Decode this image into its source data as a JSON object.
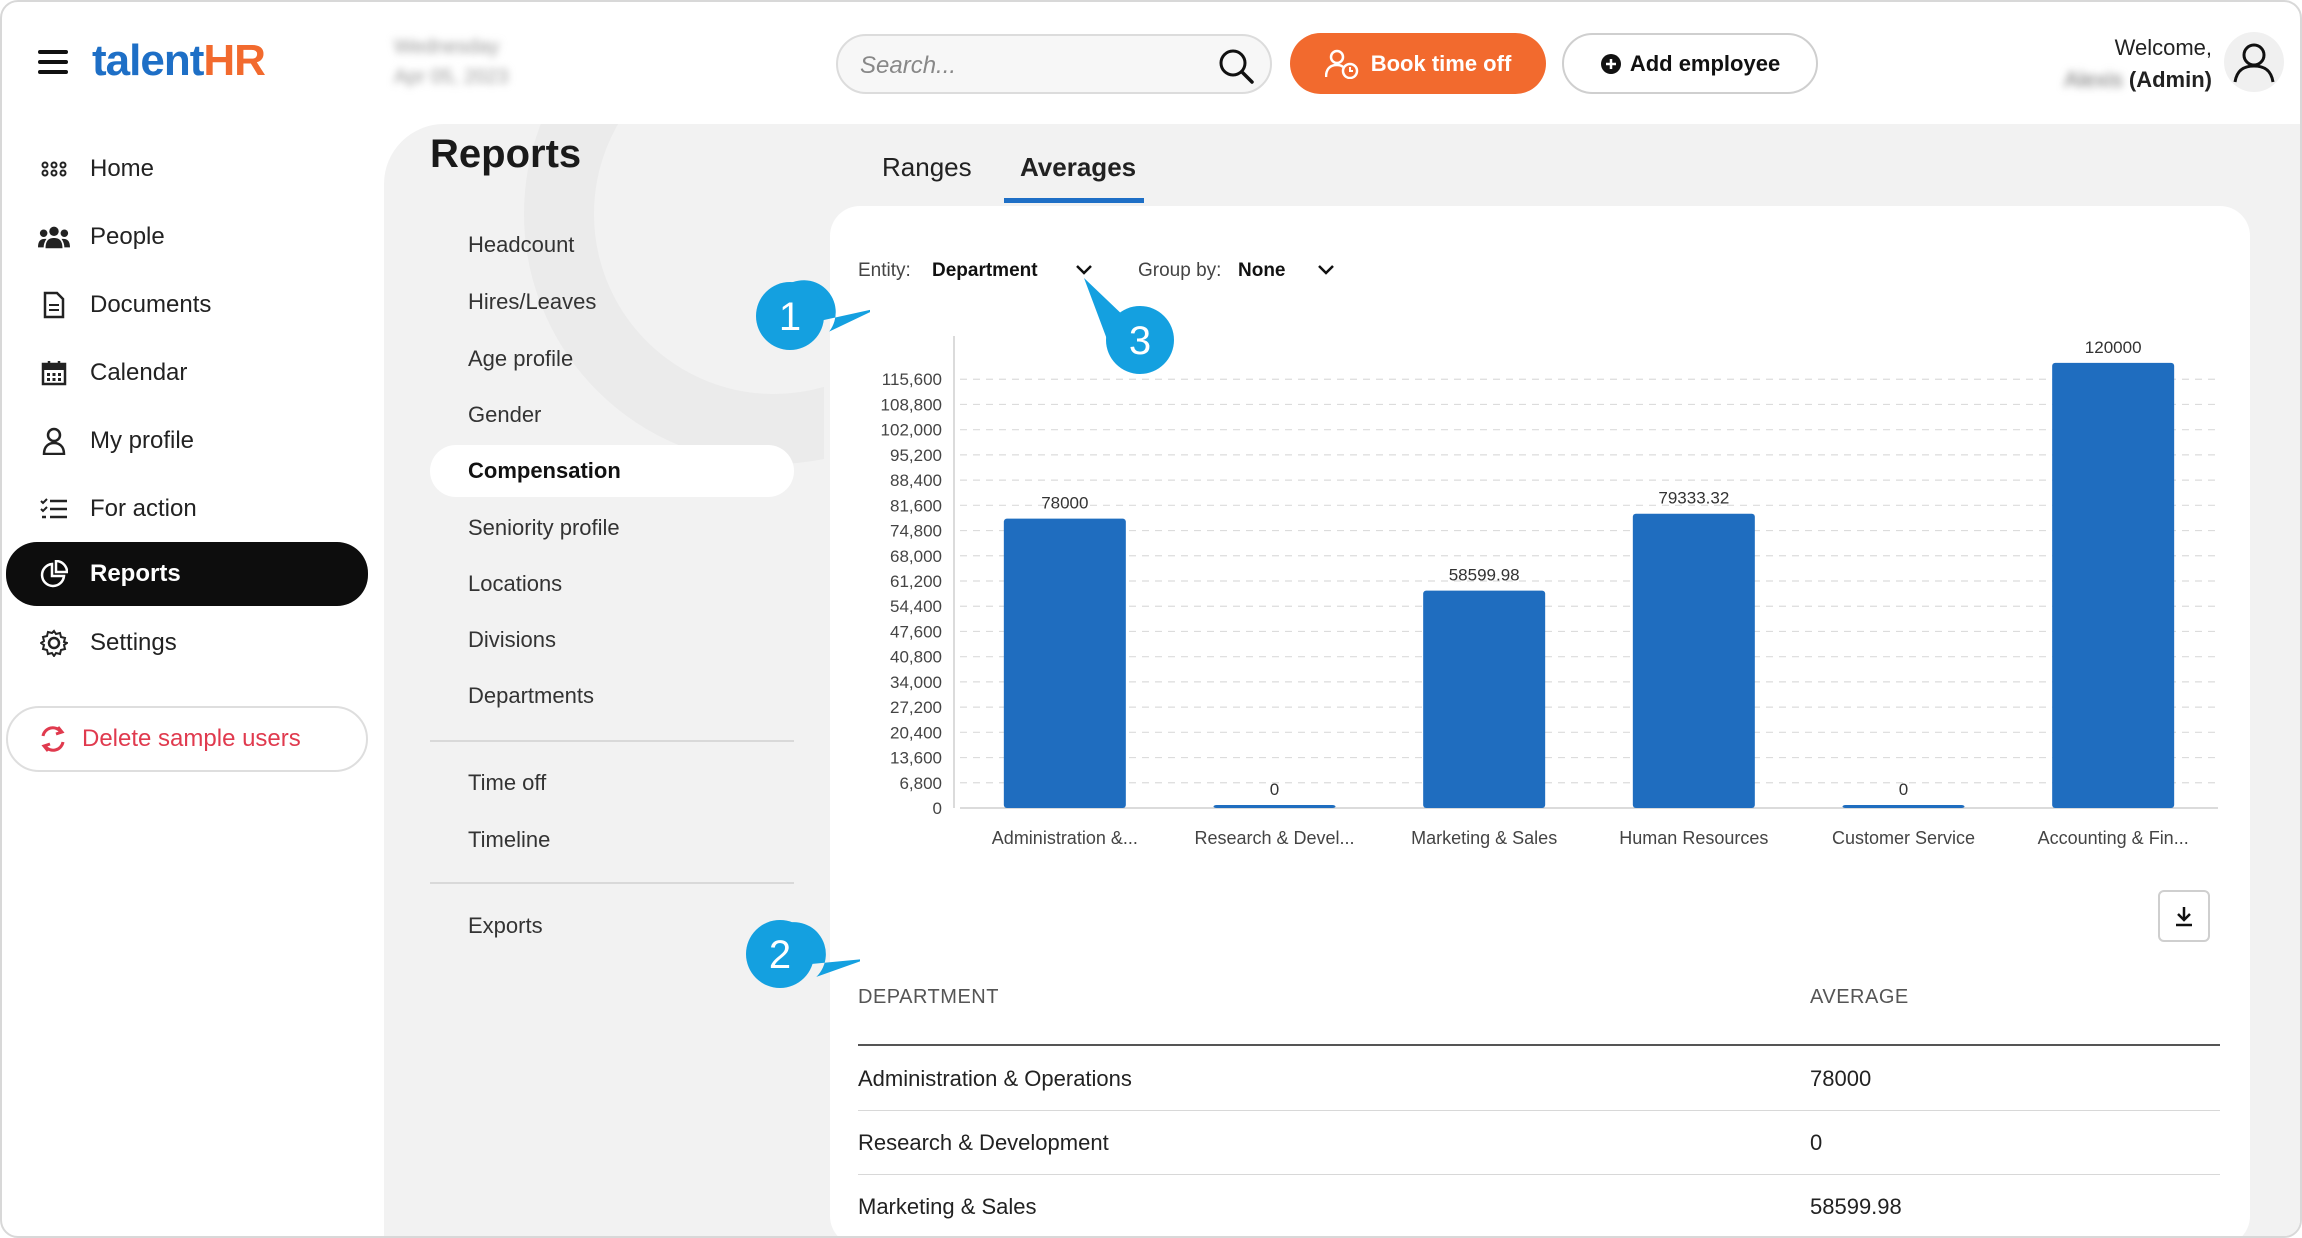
{
  "header": {
    "logo_talent": "talent",
    "logo_hr": "HR",
    "date_line1": "Wednesday",
    "date_line2": "Apr 05, 2023",
    "search_placeholder": "Search...",
    "book_label": "Book time off",
    "add_label": "Add employee",
    "welcome": "Welcome,",
    "user_name": "Alexis",
    "role": "(Admin)"
  },
  "sidebar": {
    "items": [
      {
        "label": "Home",
        "icon": "grid-icon"
      },
      {
        "label": "People",
        "icon": "people-icon"
      },
      {
        "label": "Documents",
        "icon": "document-icon"
      },
      {
        "label": "Calendar",
        "icon": "calendar-icon"
      },
      {
        "label": "My profile",
        "icon": "user-icon"
      },
      {
        "label": "For action",
        "icon": "checklist-icon"
      },
      {
        "label": "Reports",
        "icon": "pie-chart-icon",
        "active": true
      },
      {
        "label": "Settings",
        "icon": "gear-icon"
      }
    ],
    "delete_label": "Delete sample users"
  },
  "reports": {
    "title": "Reports",
    "items": [
      "Headcount",
      "Hires/Leaves",
      "Age profile",
      "Gender",
      "Compensation",
      "Seniority profile",
      "Locations",
      "Divisions",
      "Departments"
    ],
    "items2": [
      "Time off",
      "Timeline"
    ],
    "items3": [
      "Exports"
    ],
    "active": "Compensation"
  },
  "tabs": {
    "ranges": "Ranges",
    "averages": "Averages",
    "active": "Averages"
  },
  "filters": {
    "entity_label": "Entity:",
    "entity_value": "Department",
    "group_label": "Group by:",
    "group_value": "None"
  },
  "chart_data": {
    "type": "bar",
    "categories": [
      "Administration &...",
      "Research & Devel...",
      "Marketing & Sales",
      "Human Resources",
      "Customer Service",
      "Accounting & Fin..."
    ],
    "values": [
      78000,
      0,
      58599.98,
      79333.32,
      0,
      120000
    ],
    "value_labels": [
      "78000",
      "0",
      "58599.98",
      "79333.32",
      "0",
      "120000"
    ],
    "yticks": [
      "0",
      "6,800",
      "13,600",
      "20,400",
      "27,200",
      "34,000",
      "40,800",
      "47,600",
      "54,400",
      "61,200",
      "68,000",
      "74,800",
      "81,600",
      "88,400",
      "95,200",
      "102,000",
      "108,800",
      "115,600"
    ],
    "ylim": [
      0,
      122400
    ],
    "grid": true,
    "bar_color": "#1f6dbf"
  },
  "table": {
    "col1": "DEPARTMENT",
    "col2": "AVERAGE",
    "rows": [
      {
        "dept": "Administration & Operations",
        "avg": "78000"
      },
      {
        "dept": "Research & Development",
        "avg": "0"
      },
      {
        "dept": "Marketing & Sales",
        "avg": "58599.98"
      }
    ]
  },
  "callouts": [
    "1",
    "2",
    "3"
  ],
  "colors": {
    "accent": "#1e6fc6",
    "orange": "#f26a2e",
    "callout": "#14a0e0",
    "danger": "#e03a4e"
  }
}
